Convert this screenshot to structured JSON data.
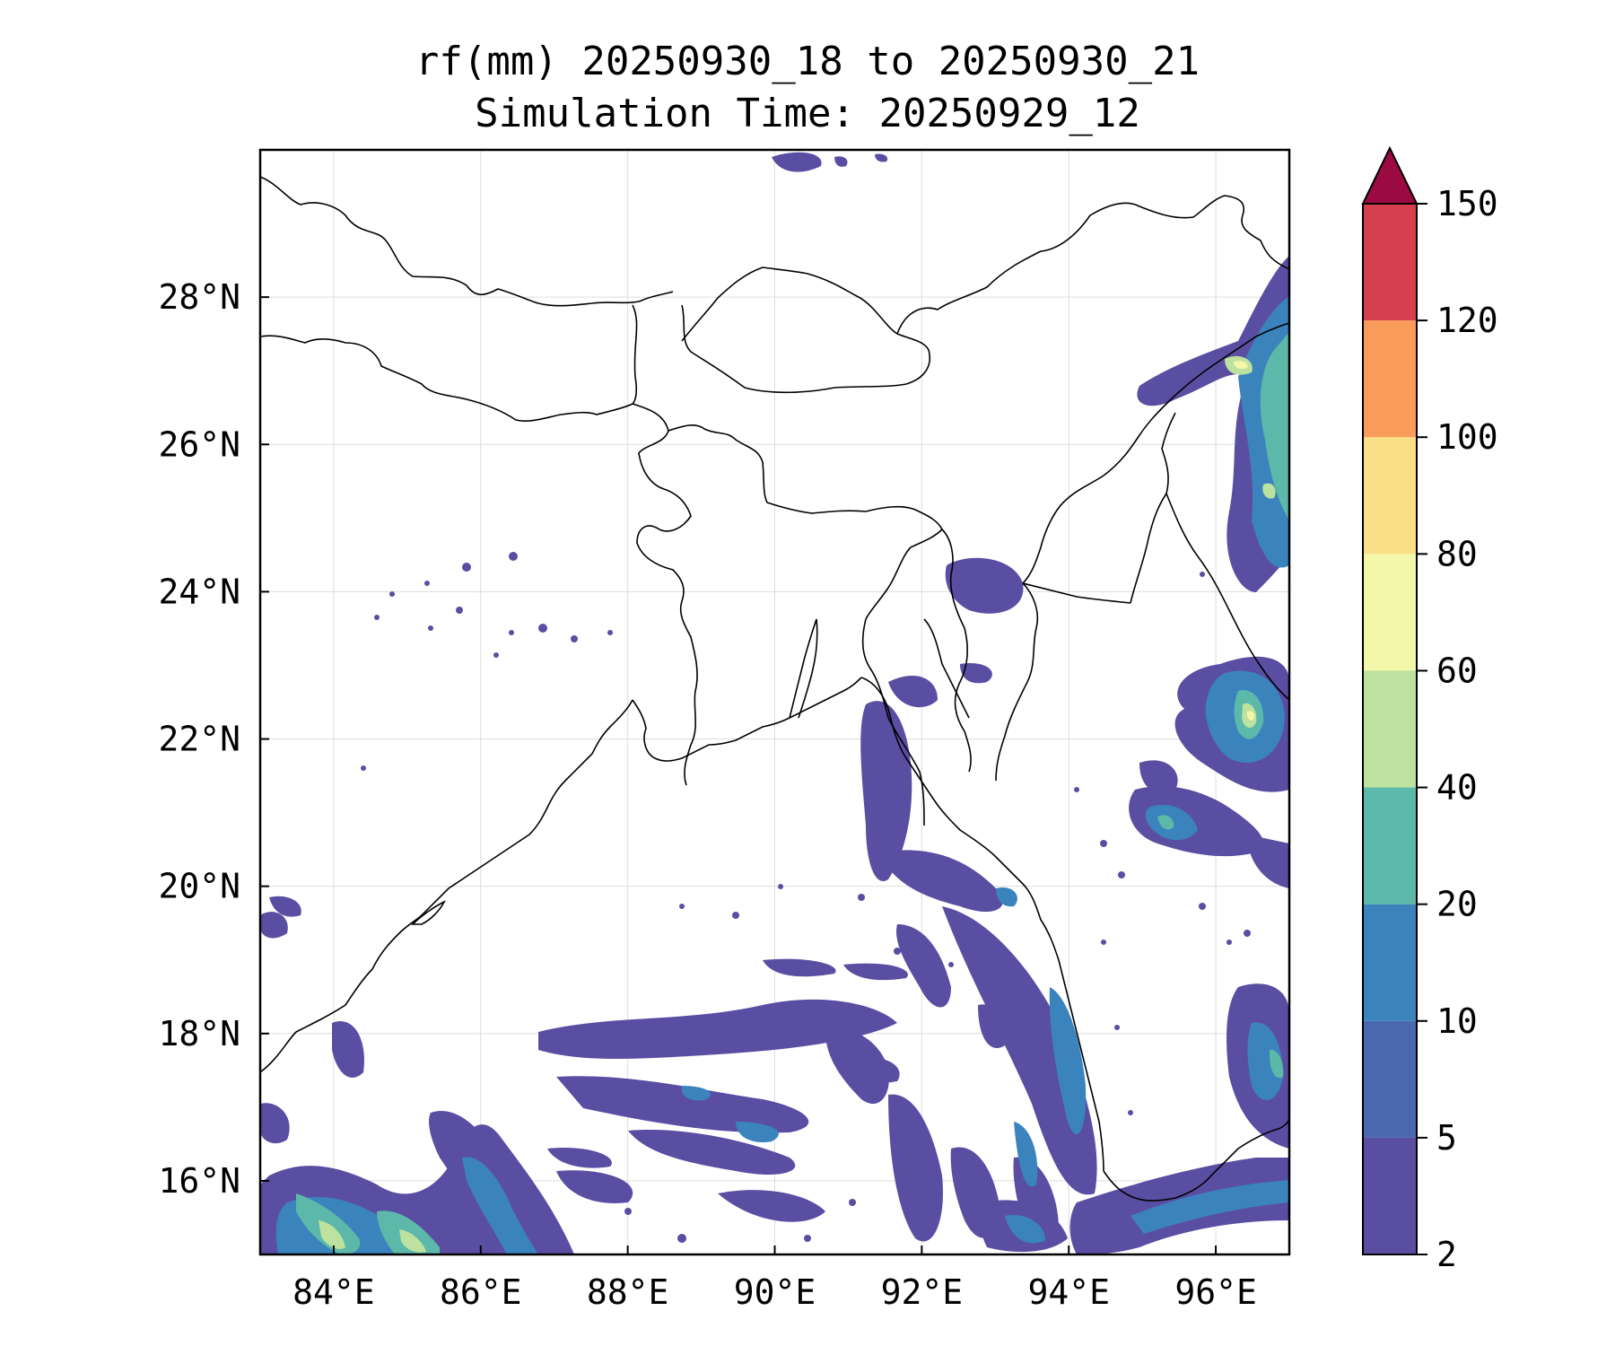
{
  "title": {
    "line1": "rf(mm) 20250930_18 to 20250930_21",
    "line2": "Simulation Time: 20250929_12"
  },
  "map": {
    "lon_range": [
      83,
      97
    ],
    "lat_range": [
      15,
      30
    ],
    "x_ticks": [
      {
        "value": 84,
        "label": "84°E"
      },
      {
        "value": 86,
        "label": "86°E"
      },
      {
        "value": 88,
        "label": "88°E"
      },
      {
        "value": 90,
        "label": "90°E"
      },
      {
        "value": 92,
        "label": "92°E"
      },
      {
        "value": 94,
        "label": "94°E"
      },
      {
        "value": 96,
        "label": "96°E"
      }
    ],
    "y_ticks": [
      {
        "value": 16,
        "label": "16°N"
      },
      {
        "value": 18,
        "label": "18°N"
      },
      {
        "value": 20,
        "label": "20°N"
      },
      {
        "value": 22,
        "label": "22°N"
      },
      {
        "value": 24,
        "label": "24°N"
      },
      {
        "value": 26,
        "label": "26°N"
      },
      {
        "value": 28,
        "label": "28°N"
      }
    ]
  },
  "colorbar": {
    "levels": [
      "2",
      "5",
      "10",
      "20",
      "40",
      "60",
      "80",
      "100",
      "120",
      "150"
    ],
    "colors": [
      "#5a4ea3",
      "#4a68b0",
      "#3b83bd",
      "#5cb8a8",
      "#bde29f",
      "#f2f7a9",
      "#fbdf87",
      "#f99c5a",
      "#d6404e"
    ],
    "extend_color": "#9c0a42"
  },
  "chart_data": {
    "type": "heatmap",
    "variable": "rf(mm)",
    "xlim": [
      83,
      97
    ],
    "ylim": [
      15,
      30
    ],
    "features": [
      {
        "region": "Bay of Bengal south-west corner",
        "lon": 84.3,
        "lat": 15.5,
        "range_mm": "20-60"
      },
      {
        "region": "Arakan coast / Myanmar",
        "lon": 93.5,
        "lat": 20,
        "range_mm": "2-20"
      },
      {
        "region": "Northern Myanmar",
        "lon": 96.3,
        "lat": 27,
        "range_mm": "10-80"
      },
      {
        "region": "Myanmar central",
        "lon": 96.2,
        "lat": 22.3,
        "range_mm": "10-60"
      },
      {
        "region": "Myanmar",
        "lon": 95.2,
        "lat": 20.7,
        "range_mm": "10-60"
      },
      {
        "region": "Bay of Bengal central",
        "lon": 89.5,
        "lat": 17.5,
        "range_mm": "2-20"
      },
      {
        "region": "Bangladesh east / Chittagong",
        "lon": 92,
        "lat": 21.5,
        "range_mm": "2-10"
      },
      {
        "region": "Southern Myanmar coast",
        "lon": 95.5,
        "lat": 15.5,
        "range_mm": "10-20"
      }
    ]
  }
}
